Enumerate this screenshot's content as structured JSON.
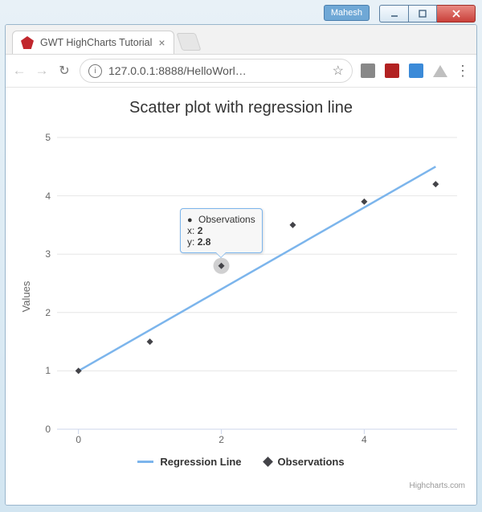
{
  "window": {
    "user_label": "Mahesh"
  },
  "browser": {
    "tab_title": "GWT HighCharts Tutorial",
    "url_display": "127.0.0.1:8888/HelloWorl…"
  },
  "chart": {
    "type": "scatter",
    "title": "Scatter plot with regression line",
    "y_axis_title": "Values",
    "xlim": [
      -0.3,
      5.3
    ],
    "ylim": [
      0,
      5
    ],
    "y_ticks": [
      0,
      1,
      2,
      3,
      4,
      5
    ],
    "x_ticks": [
      0,
      2,
      4
    ],
    "grid_color": "#e6e6e6",
    "axis_color": "#ccd6eb",
    "background_color": "#ffffff",
    "series": {
      "regression": {
        "name": "Regression Line",
        "type": "line",
        "color": "#7cb5ec",
        "line_width": 2.5,
        "points": [
          [
            0,
            1.0
          ],
          [
            5,
            4.5
          ]
        ]
      },
      "observations": {
        "name": "Observations",
        "type": "scatter",
        "color": "#434348",
        "marker": "diamond",
        "marker_size": 8,
        "points": [
          [
            0,
            1.0
          ],
          [
            1,
            1.5
          ],
          [
            2,
            2.8
          ],
          [
            3,
            3.5
          ],
          [
            4,
            3.9
          ],
          [
            5,
            4.2
          ]
        ]
      }
    },
    "tooltip": {
      "series_name": "Observations",
      "x_label": "x",
      "x_value": "2",
      "y_label": "y",
      "y_value": "2.8",
      "point_index": 2
    },
    "legend": {
      "regression_label": "Regression Line",
      "observations_label": "Observations"
    },
    "credits": "Highcharts.com"
  }
}
